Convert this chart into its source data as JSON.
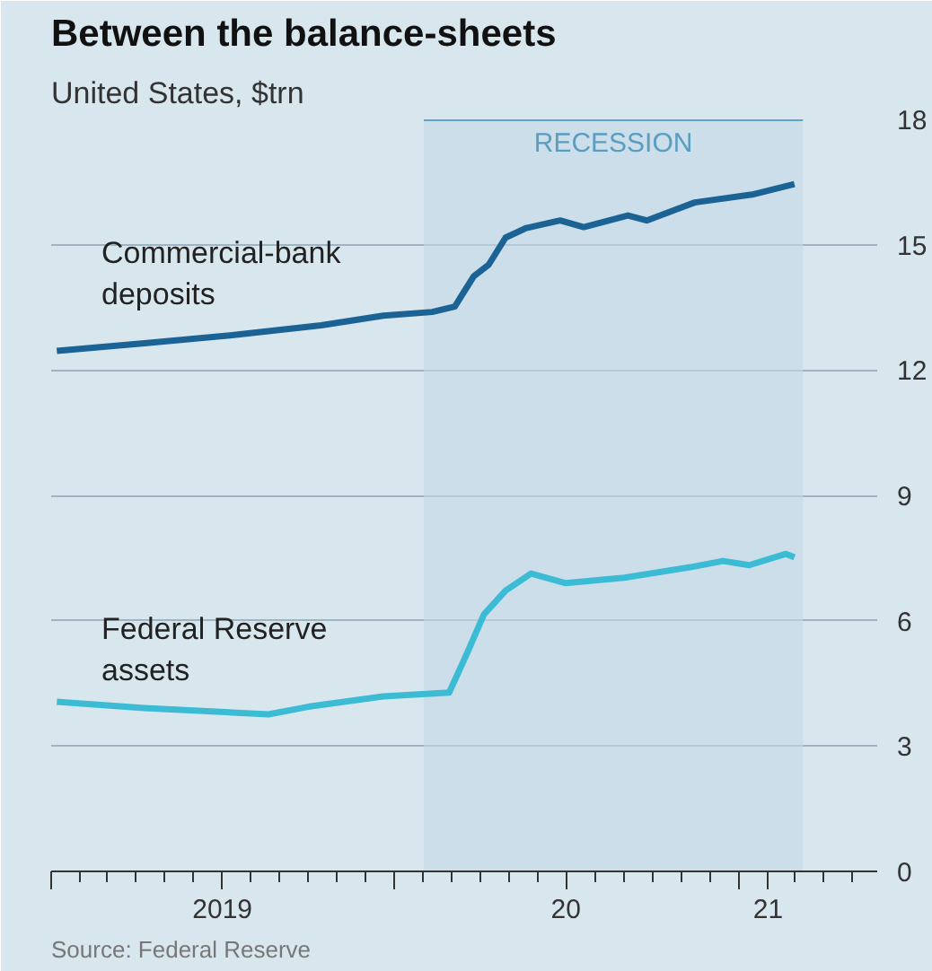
{
  "chart_data": {
    "type": "line",
    "title": "Between the balance-sheets",
    "subtitle": "United States, $trn",
    "annotations": [
      "Source: Federal Reserve"
    ],
    "ylim": [
      0,
      18
    ],
    "yticks": [
      0,
      3,
      6,
      9,
      12,
      15,
      18
    ],
    "xlim": [
      "2019-01-01",
      "2021-05-28"
    ],
    "xticks": [
      {
        "value": "2019-01-01",
        "label": null
      },
      {
        "value": "2019-07-02",
        "label": "2019"
      },
      {
        "value": "2020-01-01",
        "label": null
      },
      {
        "value": "2020-07-01",
        "label": "20"
      },
      {
        "value": "2021-01-01",
        "label": null
      },
      {
        "value": "2021-02-01",
        "label": "21"
      }
    ],
    "grid": "y",
    "line_style": "solid",
    "bands": [
      {
        "axis": "x",
        "from": "2020-02-01",
        "to": "2021-03-10",
        "label": "RECESSION",
        "color": "#c3d9e6"
      }
    ],
    "series": [
      {
        "name": "Commercial-bank deposits",
        "color": "#1b6394",
        "x": [
          "2019-01-07",
          "2019-04-10",
          "2019-07-10",
          "2019-10-15",
          "2019-12-20",
          "2020-02-10",
          "2020-03-05",
          "2020-03-25",
          "2020-04-10",
          "2020-04-28",
          "2020-05-20",
          "2020-06-25",
          "2020-07-20",
          "2020-09-05",
          "2020-09-25",
          "2020-11-15",
          "2021-01-15",
          "2021-03-01"
        ],
        "values": [
          12.46,
          12.64,
          12.83,
          13.07,
          13.3,
          13.39,
          13.52,
          14.24,
          14.52,
          15.17,
          15.4,
          15.58,
          15.42,
          15.7,
          15.58,
          16.01,
          16.2,
          16.45
        ]
      },
      {
        "name": "Federal Reserve assets",
        "color": "#3cbcd4",
        "x": [
          "2019-01-07",
          "2019-04-10",
          "2019-08-20",
          "2019-10-01",
          "2019-12-20",
          "2020-02-28",
          "2020-03-18",
          "2020-04-05",
          "2020-04-28",
          "2020-05-25",
          "2020-07-01",
          "2020-09-01",
          "2020-11-10",
          "2020-12-15",
          "2021-01-12",
          "2021-02-20",
          "2021-03-01"
        ],
        "values": [
          4.06,
          3.91,
          3.76,
          3.94,
          4.19,
          4.28,
          5.22,
          6.15,
          6.72,
          7.13,
          6.9,
          7.03,
          7.28,
          7.43,
          7.33,
          7.6,
          7.52
        ]
      }
    ]
  }
}
